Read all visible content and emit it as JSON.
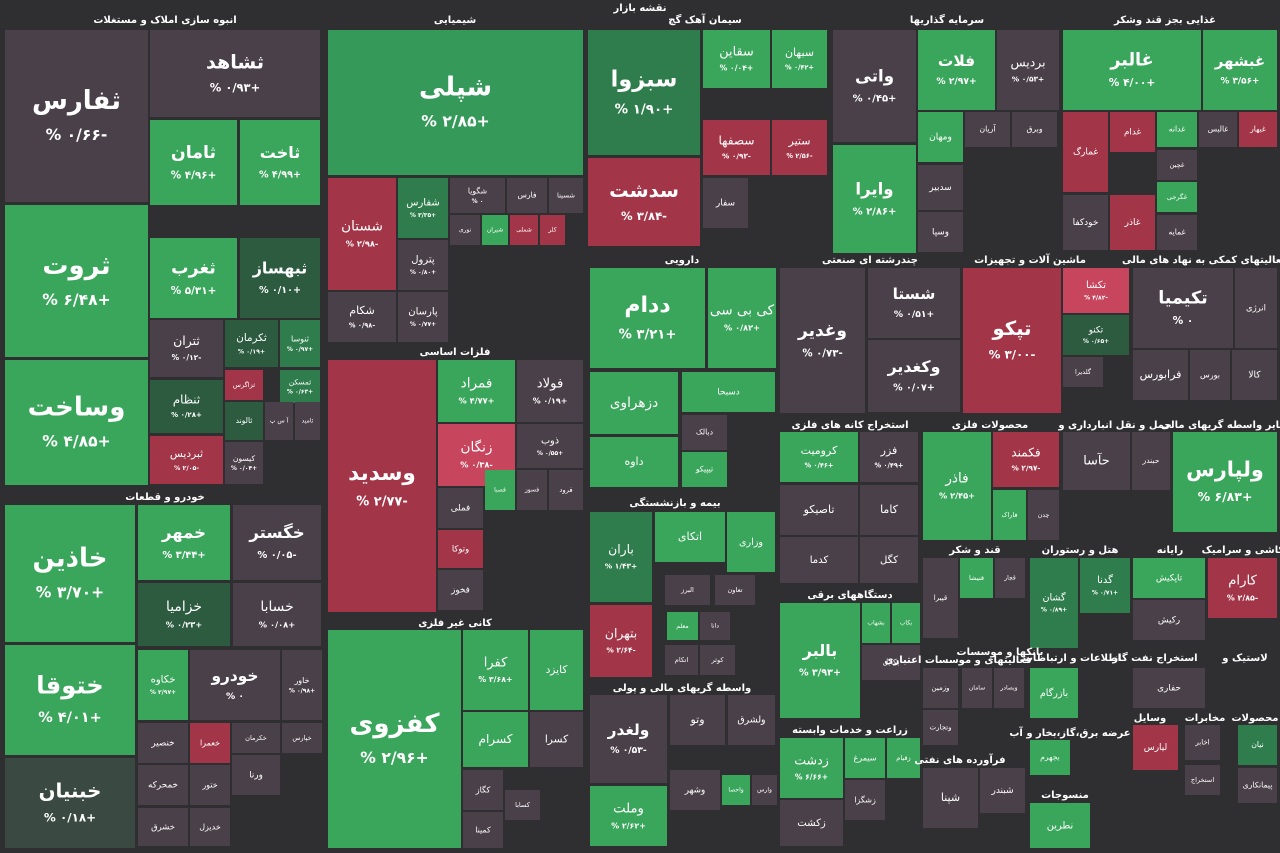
{
  "header": {
    "title": "نقشه بازار"
  },
  "sectors": [
    {
      "title": "انبوه سازی املاک و مستغلات",
      "tiles": [
        {
          "symbol": "ثفارس",
          "change": "-۰/۶۶ %",
          "color": "#4a4049"
        },
        {
          "symbol": "ثشاهد",
          "change": "+۰/۹۳ %",
          "color": "#4a4049"
        },
        {
          "symbol": "ثامان",
          "change": "+۴/۹۶ %",
          "color": "#3aa65c"
        },
        {
          "symbol": "ثاخت",
          "change": "+۴/۹۹ %",
          "color": "#3aa65c"
        },
        {
          "symbol": "ثروت",
          "change": "+۶/۴۸ %",
          "color": "#3aa65c"
        },
        {
          "symbol": "ثغرب",
          "change": "+۵/۳۱ %",
          "color": "#3aa65c"
        },
        {
          "symbol": "ثبهساز",
          "change": "+۰/۱۰ %",
          "color": "#2c5b40"
        },
        {
          "symbol": "وساخت",
          "change": "+۴/۸۵ %",
          "color": "#3aa65c"
        },
        {
          "symbol": "ثتران",
          "change": "-۰/۱۲ %",
          "color": "#4a4049"
        },
        {
          "symbol": "ثکرمان",
          "change": "+۰/۱۹ %",
          "color": "#2c5b40"
        },
        {
          "symbol": "ثنوسا",
          "change": "+۰/۹۷ %",
          "color": "#2f7d4c"
        },
        {
          "symbol": "ثنظام",
          "change": "+۰/۲۸ %",
          "color": "#2c5b40"
        },
        {
          "symbol": "ثزاگرس",
          "color": "#a33548"
        },
        {
          "symbol": "ثمسکن",
          "change": "+۰/۶۳ %",
          "color": "#2f7d4c"
        },
        {
          "symbol": "ثالوند",
          "color": "#2c5b40"
        },
        {
          "symbol": "آ س پ",
          "color": "#4a4049"
        },
        {
          "symbol": "ثامید",
          "color": "#4a4049"
        },
        {
          "symbol": "ثبردیس",
          "change": "-۲/۰۵ %",
          "color": "#a33548"
        },
        {
          "symbol": "کیسون",
          "change": "+۰/۰۴ %",
          "color": "#4a4049"
        }
      ]
    },
    {
      "title": "خودرو و قطعات",
      "tiles": [
        {
          "symbol": "خاذین",
          "change": "+۳/۷۰ %",
          "color": "#3aa65c"
        },
        {
          "symbol": "خمهر",
          "change": "+۳/۴۴ %",
          "color": "#3aa65c"
        },
        {
          "symbol": "خگستر",
          "change": "-۰/۰۵ %",
          "color": "#4a4049"
        },
        {
          "symbol": "خزامیا",
          "change": "+۰/۲۳ %",
          "color": "#2c5b40"
        },
        {
          "symbol": "خسابا",
          "change": "+۰/۰۸ %",
          "color": "#4a4049"
        },
        {
          "symbol": "ختوقا",
          "change": "+۴/۰۱ %",
          "color": "#3aa65c"
        },
        {
          "symbol": "خکاوه",
          "change": "+۲/۹۷ %",
          "color": "#3aa65c"
        },
        {
          "symbol": "خودرو",
          "change": "۰ %",
          "color": "#4a4049"
        },
        {
          "symbol": "خاور",
          "change": "+۰/۹۸ %",
          "color": "#4a4049"
        },
        {
          "symbol": "خنصیر",
          "color": "#4a4049"
        },
        {
          "symbol": "خعمرا",
          "color": "#a33548"
        },
        {
          "symbol": "خکرمان",
          "color": "#4a4049"
        },
        {
          "symbol": "خپارس",
          "color": "#4a4049"
        },
        {
          "symbol": "خبنیان",
          "change": "+۰/۱۸ %",
          "color": "#3a4a42"
        },
        {
          "symbol": "خمحرکه",
          "color": "#4a4049"
        },
        {
          "symbol": "ختور",
          "color": "#4a4049"
        },
        {
          "symbol": "خشرق",
          "color": "#4a4049"
        },
        {
          "symbol": "خدیزل",
          "color": "#4a4049"
        },
        {
          "symbol": "ورنا",
          "color": "#4a4049"
        }
      ]
    },
    {
      "title": "شیمیایی",
      "tiles": [
        {
          "symbol": "شپلی",
          "change": "+۲/۸۵ %",
          "color": "#35995a"
        },
        {
          "symbol": "شستان",
          "change": "-۲/۹۸ %",
          "color": "#a33548"
        },
        {
          "symbol": "شفارس",
          "change": "+۳/۳۵ %",
          "color": "#2f7d4c"
        },
        {
          "symbol": "شگویا",
          "change": "۰ %",
          "color": "#4a4049"
        },
        {
          "symbol": "فارس",
          "color": "#4a4049"
        },
        {
          "symbol": "شسینا",
          "color": "#4a4049"
        },
        {
          "symbol": "نوری",
          "color": "#4a4049"
        },
        {
          "symbol": "شیران",
          "color": "#3aa65c"
        },
        {
          "symbol": "شملی",
          "color": "#a33548"
        },
        {
          "symbol": "کلر",
          "color": "#a33548"
        },
        {
          "symbol": "پترول",
          "change": "+۰/۸۰ %",
          "color": "#4a4049"
        },
        {
          "symbol": "شکام",
          "change": "-۰/۹۸ %",
          "color": "#4a4049"
        },
        {
          "symbol": "پارسان",
          "change": "+۰/۷۷ %",
          "color": "#4a4049"
        }
      ]
    },
    {
      "title": "فلزات اساسی",
      "tiles": [
        {
          "symbol": "وسدید",
          "change": "-۲/۷۷ %",
          "color": "#a33548"
        },
        {
          "symbol": "فمراد",
          "change": "+۴/۷۷ %",
          "color": "#3aa65c"
        },
        {
          "symbol": "فولاد",
          "change": "+۰/۱۹ %",
          "color": "#4a4049"
        },
        {
          "symbol": "زنگان",
          "change": "-۰/۳۸ %",
          "color": "#c8455e"
        },
        {
          "symbol": "ذوب",
          "change": "+۰/۵۵ %",
          "color": "#4a4049"
        },
        {
          "symbol": "فملی",
          "color": "#4a4049"
        },
        {
          "symbol": "فصبا",
          "color": "#3aa65c"
        },
        {
          "symbol": "فسوز",
          "color": "#4a4049"
        },
        {
          "symbol": "فرود",
          "color": "#4a4049"
        },
        {
          "symbol": "وتوکا",
          "color": "#a33548"
        },
        {
          "symbol": "فخوز",
          "color": "#4a4049"
        }
      ]
    },
    {
      "title": "کانی غیر فلزی",
      "tiles": [
        {
          "symbol": "کفزوی",
          "change": "+۲/۹۶ %",
          "color": "#3aa65c"
        },
        {
          "symbol": "کفرا",
          "change": "+۳/۶۸ %",
          "color": "#3aa65c"
        },
        {
          "symbol": "کایزد",
          "color": "#3aa65c"
        },
        {
          "symbol": "کسرام",
          "color": "#3aa65c"
        },
        {
          "symbol": "کسرا",
          "color": "#4a4049"
        },
        {
          "symbol": "کگاز",
          "color": "#4a4049"
        },
        {
          "symbol": "کسابا",
          "color": "#4a4049"
        },
        {
          "symbol": "کمینا",
          "color": "#4a4049"
        }
      ]
    },
    {
      "title": "سیمان آهک گچ",
      "tiles": [
        {
          "symbol": "سبزوا",
          "change": "+۱/۹۰ %",
          "color": "#2f7d4c"
        },
        {
          "symbol": "سقاین",
          "change": "+۰/۰۴ %",
          "color": "#3aa65c"
        },
        {
          "symbol": "سبهان",
          "change": "+۰/۴۲ %",
          "color": "#3aa65c"
        },
        {
          "symbol": "سدشت",
          "change": "-۳/۸۴ %",
          "color": "#a33548"
        },
        {
          "symbol": "سصفها",
          "change": "-۰/۹۲ %",
          "color": "#a33548"
        },
        {
          "symbol": "ستیر",
          "change": "-۲/۵۶ %",
          "color": "#a33548"
        },
        {
          "symbol": "سفار",
          "color": "#4a4049"
        }
      ]
    },
    {
      "title": "دارویی",
      "tiles": [
        {
          "symbol": "ددام",
          "change": "+۳/۲۱ %",
          "color": "#3aa65c"
        },
        {
          "symbol": "کی بی سی",
          "change": "+۰/۸۲ %",
          "color": "#3aa65c"
        },
        {
          "symbol": "دزهراوی",
          "color": "#3aa65c"
        },
        {
          "symbol": "دسبحا",
          "color": "#3aa65c"
        },
        {
          "symbol": "داوه",
          "color": "#3aa65c"
        },
        {
          "symbol": "دبالک",
          "color": "#4a4049"
        },
        {
          "symbol": "تیپیکو",
          "color": "#3aa65c"
        }
      ]
    },
    {
      "title": "بیمه و بازنشستگی",
      "tiles": [
        {
          "symbol": "باران",
          "change": "+۱/۴۳ %",
          "color": "#2f7d4c"
        },
        {
          "symbol": "اتکای",
          "color": "#3aa65c"
        },
        {
          "symbol": "وزاری",
          "color": "#3aa65c"
        },
        {
          "symbol": "بتهران",
          "change": "-۲/۶۴ %",
          "color": "#a33548"
        },
        {
          "symbol": "تعاون",
          "color": "#4a4049"
        },
        {
          "symbol": "البرز",
          "color": "#4a4049"
        },
        {
          "symbol": "دانا",
          "color": "#4a4049"
        },
        {
          "symbol": "معلم",
          "color": "#3aa65c"
        },
        {
          "symbol": "اتکام",
          "color": "#4a4049"
        },
        {
          "symbol": "کوثر",
          "color": "#4a4049"
        }
      ]
    },
    {
      "title": "واسطه گریهای مالی و پولی",
      "tiles": [
        {
          "symbol": "ولغدر",
          "change": "-۰/۵۳ %",
          "color": "#4a4049"
        },
        {
          "symbol": "وتو",
          "color": "#4a4049"
        },
        {
          "symbol": "ولشرق",
          "color": "#4a4049"
        },
        {
          "symbol": "وملت",
          "change": "+۲/۶۲ %",
          "color": "#3aa65c"
        },
        {
          "symbol": "وشهر",
          "color": "#4a4049"
        },
        {
          "symbol": "واحصا",
          "color": "#3aa65c"
        },
        {
          "symbol": "وارس",
          "color": "#4a4049"
        }
      ]
    },
    {
      "title": "سرمایه گذاریها",
      "tiles": [
        {
          "symbol": "واتی",
          "change": "+۰/۴۵ %",
          "color": "#4a4049"
        },
        {
          "symbol": "فلات",
          "change": "+۲/۹۷ %",
          "color": "#3aa65c"
        },
        {
          "symbol": "بردیس",
          "change": "+۰/۵۳ %",
          "color": "#4a4049"
        },
        {
          "symbol": "وایرا",
          "change": "+۲/۸۶ %",
          "color": "#3aa65c"
        },
        {
          "symbol": "ومهان",
          "color": "#3aa65c"
        },
        {
          "symbol": "آریان",
          "color": "#4a4049"
        },
        {
          "symbol": "وبرق",
          "color": "#4a4049"
        },
        {
          "symbol": "سدبیر",
          "color": "#4a4049"
        },
        {
          "symbol": "وسپا",
          "color": "#4a4049"
        }
      ]
    },
    {
      "title": "غذایی بجز قند وشکر",
      "tiles": [
        {
          "symbol": "غالبر",
          "change": "+۴/۰۰ %",
          "color": "#3aa65c"
        },
        {
          "symbol": "غبشهر",
          "change": "+۳/۵۶ %",
          "color": "#3aa65c"
        },
        {
          "symbol": "غمارگ",
          "color": "#a33548"
        },
        {
          "symbol": "غدام",
          "color": "#a33548"
        },
        {
          "symbol": "غدانه",
          "color": "#3aa65c"
        },
        {
          "symbol": "غالبس",
          "color": "#4a4049"
        },
        {
          "symbol": "غبهار",
          "color": "#a33548"
        },
        {
          "symbol": "خودکفا",
          "color": "#4a4049"
        },
        {
          "symbol": "غاذر",
          "color": "#a33548"
        },
        {
          "symbol": "غچین",
          "color": "#4a4049"
        },
        {
          "symbol": "غگرجی",
          "color": "#3aa65c"
        },
        {
          "symbol": "غمایه",
          "color": "#4a4049"
        }
      ]
    },
    {
      "title": "چندرشته ای صنعتی",
      "tiles": [
        {
          "symbol": "وغدیر",
          "change": "-۰/۷۳ %",
          "color": "#4a4049"
        },
        {
          "symbol": "شستا",
          "change": "+۰/۵۱ %",
          "color": "#4a4049"
        },
        {
          "symbol": "وکغدیر",
          "change": "+۰/۰۷ %",
          "color": "#4a4049"
        }
      ]
    },
    {
      "title": "ماشین آلات و تجهیزات",
      "tiles": [
        {
          "symbol": "تپکو",
          "change": "-۳/۰۰ %",
          "color": "#a33548"
        },
        {
          "symbol": "تکشا",
          "change": "-۴/۸۲ %",
          "color": "#c8455e"
        },
        {
          "symbol": "تکنو",
          "change": "+۰/۶۵ %",
          "color": "#2c5b40"
        },
        {
          "symbol": "گلدیرا",
          "color": "#4a4049"
        }
      ]
    },
    {
      "title": "فعالیتهای کمکی به نهاد های مالی",
      "tiles": [
        {
          "symbol": "تکیمیا",
          "change": "۰ %",
          "color": "#4a4049"
        },
        {
          "symbol": "انرژی",
          "color": "#4a4049"
        },
        {
          "symbol": "فرابورس",
          "color": "#4a4049"
        },
        {
          "symbol": "بورس",
          "color": "#4a4049"
        },
        {
          "symbol": "کالا",
          "color": "#4a4049"
        }
      ]
    },
    {
      "title": "استخراج کانه های فلزی",
      "tiles": [
        {
          "symbol": "کرومیت",
          "change": "+۰/۴۶ %",
          "color": "#3aa65c"
        },
        {
          "symbol": "فزر",
          "change": "+۰/۴۹ %",
          "color": "#4a4049"
        },
        {
          "symbol": "تاصیکو",
          "color": "#4a4049"
        },
        {
          "symbol": "کاما",
          "color": "#4a4049"
        },
        {
          "symbol": "کدما",
          "color": "#4a4049"
        },
        {
          "symbol": "کگل",
          "color": "#4a4049"
        }
      ]
    },
    {
      "title": "محصولات فلزی",
      "tiles": [
        {
          "symbol": "فاذر",
          "change": "+۲/۴۵ %",
          "color": "#3aa65c"
        },
        {
          "symbol": "فکمند",
          "change": "-۲/۹۷ %",
          "color": "#a33548"
        },
        {
          "symbol": "فاراک",
          "color": "#3aa65c"
        },
        {
          "symbol": "چدن",
          "color": "#4a4049"
        }
      ]
    },
    {
      "title": "حمل و نقل انبارداری و",
      "tiles": [
        {
          "symbol": "حآسا",
          "color": "#4a4049"
        },
        {
          "symbol": "حبندر",
          "color": "#4a4049"
        }
      ]
    },
    {
      "title": "سایر واسطه گریهای مالی",
      "tiles": [
        {
          "symbol": "ولپارس",
          "change": "+۶/۸۳ %",
          "color": "#3aa65c"
        }
      ]
    },
    {
      "title": "قند و شکر",
      "tiles": [
        {
          "symbol": "قپیرا",
          "color": "#4a4049"
        },
        {
          "symbol": "قنیشا",
          "color": "#3aa65c"
        },
        {
          "symbol": "قچار",
          "color": "#4a4049"
        }
      ]
    },
    {
      "title": "هتل و رستوران",
      "tiles": [
        {
          "symbol": "گشان",
          "change": "+۰/۸۹ %",
          "color": "#2f7d4c"
        },
        {
          "symbol": "گدنا",
          "change": "+۰/۷۱ %",
          "color": "#2f7d4c"
        }
      ]
    },
    {
      "title": "رایانه",
      "tiles": [
        {
          "symbol": "تاپکیش",
          "color": "#3aa65c"
        },
        {
          "symbol": "رکیش",
          "color": "#4a4049"
        }
      ]
    },
    {
      "title": "کاشی و سرامیک",
      "tiles": [
        {
          "symbol": "کارام",
          "change": "-۲/۸۵ %",
          "color": "#a33548"
        }
      ]
    },
    {
      "title": "دستگاههای برقی",
      "tiles": [
        {
          "symbol": "بالبر",
          "change": "+۳/۹۳ %",
          "color": "#3aa65c"
        },
        {
          "symbol": "بشهاب",
          "color": "#3aa65c"
        },
        {
          "symbol": "بکاب",
          "color": "#3aa65c"
        },
        {
          "symbol": "بکابل",
          "color": "#4a4049"
        }
      ]
    },
    {
      "title": "زراعت و خدمات وابسته",
      "tiles": [
        {
          "symbol": "زدشت",
          "change": "+۶/۶۶ %",
          "color": "#3aa65c"
        },
        {
          "symbol": "سیمرغ",
          "color": "#3aa65c"
        },
        {
          "symbol": "زقیام",
          "color": "#3aa65c"
        },
        {
          "symbol": "زشگزا",
          "color": "#4a4049"
        },
        {
          "symbol": "زکشت",
          "color": "#4a4049"
        }
      ]
    },
    {
      "title": "فعالیتهای و موسسات اعتباری",
      "tiles": [
        {
          "symbol": "وزمین",
          "color": "#4a4049"
        },
        {
          "symbol": "وتجارت",
          "color": "#4a4049"
        }
      ]
    },
    {
      "title": "بانکها و موسسات",
      "tiles": [
        {
          "symbol": "سامان",
          "color": "#4a4049"
        },
        {
          "symbol": "وبصادر",
          "color": "#4a4049"
        }
      ]
    },
    {
      "title": "فرآورده های نفتی",
      "tiles": [
        {
          "symbol": "شپنا",
          "color": "#4a4049"
        },
        {
          "symbol": "شبندر",
          "color": "#4a4049"
        }
      ]
    },
    {
      "title": "اطلاعات و ارتباطات",
      "tiles": [
        {
          "symbol": "بازرگام",
          "color": "#3aa65c"
        }
      ]
    },
    {
      "title": "عرضه برق،گاز،بخار و آب",
      "tiles": [
        {
          "symbol": "بجهرم",
          "color": "#3aa65c"
        }
      ]
    },
    {
      "title": "منسوجات",
      "tiles": [
        {
          "symbol": "نطرین",
          "color": "#3aa65c"
        }
      ]
    },
    {
      "title": "استخراج نفت گاز",
      "tiles": [
        {
          "symbol": "حفاری",
          "color": "#4a4049"
        }
      ]
    },
    {
      "title": "لاستیک و",
      "tiles": []
    },
    {
      "title": "وسایل",
      "tiles": [
        {
          "symbol": "لیارس",
          "color": "#a33548"
        }
      ]
    },
    {
      "title": "مخابرات",
      "tiles": [
        {
          "symbol": "اخابر",
          "color": "#4a4049"
        },
        {
          "symbol": "استخراج",
          "color": "#4a4049"
        }
      ]
    },
    {
      "title": "محصولات",
      "tiles": [
        {
          "symbol": "نیان",
          "color": "#2f7d4c"
        },
        {
          "symbol": "پیمانکاری",
          "color": "#4a4049"
        }
      ]
    }
  ]
}
